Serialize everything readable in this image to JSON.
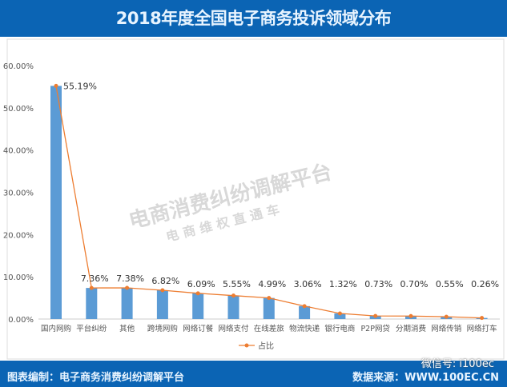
{
  "header": {
    "title": "2018年度全国电子商务投诉领域分布"
  },
  "footer": {
    "left": "图表编制：电子商务消费纠纷调解平台",
    "right": "数据来源：WWW.100EC.CN",
    "wechat": "微信号: i100ec"
  },
  "watermark": {
    "line1": "电商消费纠纷调解平台",
    "line2": "电 商 维 权 直 通 车"
  },
  "colors": {
    "bar": "#5b9bd5",
    "line": "#ed7d31",
    "header": "#0b64b4"
  },
  "chart_data": {
    "type": "bar+line",
    "categories": [
      "国内网购",
      "平台纠纷",
      "其他",
      "跨境网购",
      "网络订餐",
      "网络支付",
      "在线差旅",
      "物流快递",
      "银行电商",
      "P2P网贷",
      "分期消费",
      "网络传销",
      "网络打车"
    ],
    "values": [
      55.19,
      7.36,
      7.38,
      6.82,
      6.09,
      5.55,
      4.99,
      3.06,
      1.32,
      0.73,
      0.7,
      0.55,
      0.26
    ],
    "data_labels": [
      "55.19%",
      "7.36%",
      "7.38%",
      "6.82%",
      "6.09%",
      "5.55%",
      "4.99%",
      "3.06%",
      "1.32%",
      "0.73%",
      "0.70%",
      "0.55%",
      "0.26%"
    ],
    "series": [
      {
        "name": "占比"
      }
    ],
    "y_ticks": [
      "0.00%",
      "10.00%",
      "20.00%",
      "30.00%",
      "40.00%",
      "50.00%",
      "60.00%"
    ],
    "ylim": [
      0,
      60
    ],
    "grid": false,
    "legend": "bottom"
  }
}
